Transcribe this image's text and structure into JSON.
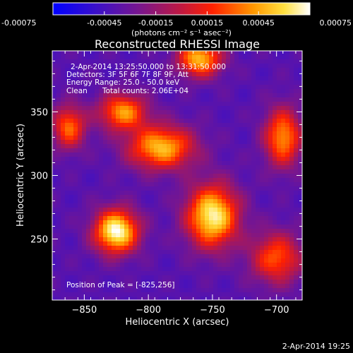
{
  "colorbar": {
    "ticks": [
      "-0.00075",
      "-0.00045",
      "-0.00015",
      "0.00015",
      "0.00045",
      "0.00075"
    ],
    "tick_values": [
      -0.00075,
      -0.00045,
      -0.00015,
      0.00015,
      0.00045,
      0.00075
    ],
    "range": [
      -0.00075,
      0.00075
    ],
    "units_label": "(photons cm⁻² s⁻¹ asec⁻²)"
  },
  "image_info": {
    "time_range": "2-Apr-2014 13:25:50.000 to 13:31:50.000",
    "detectors": "Detectors: 3F 5F 6F 7F 8F 9F, Att",
    "energy_range": "Energy Range: 25.0 - 50.0 keV",
    "algorithm": "Clean",
    "total_counts": "Total counts: 2.06E+04",
    "peak_position": "Position of Peak = [-825,256]"
  },
  "footer_timestamp": "2-Apr-2014 19:25",
  "chart_data": {
    "type": "heatmap",
    "title": "Reconstructed RHESSI Image",
    "xlabel": "Heliocentric X (arcsec)",
    "ylabel": "Heliocentric Y (arcsec)",
    "xlim": [
      -875,
      -680
    ],
    "ylim": [
      202,
      398
    ],
    "x_ticks": [
      -850,
      -800,
      -750,
      -700
    ],
    "x_tick_labels": [
      "−850",
      "−800",
      "−750",
      "−700"
    ],
    "y_ticks": [
      250,
      300,
      350
    ],
    "y_tick_labels": [
      "250",
      "300",
      "350"
    ],
    "colormap": "rhessi-blue-purple-red-yellow-white",
    "value_range": [
      -0.00075,
      0.00075
    ],
    "sources": [
      {
        "x": -825,
        "y": 256,
        "sx": 12,
        "sy": 12,
        "amp": 0.00076
      },
      {
        "x": -750,
        "y": 268,
        "sx": 14,
        "sy": 17,
        "amp": 0.0007
      },
      {
        "x": -790,
        "y": 322,
        "sx": 18,
        "sy": 12,
        "amp": 0.00052
      },
      {
        "x": -820,
        "y": 350,
        "sx": 13,
        "sy": 10,
        "amp": 0.00042
      },
      {
        "x": -760,
        "y": 392,
        "sx": 12,
        "sy": 10,
        "amp": 0.00052
      },
      {
        "x": -695,
        "y": 330,
        "sx": 10,
        "sy": 16,
        "amp": 0.00042
      },
      {
        "x": -862,
        "y": 338,
        "sx": 9,
        "sy": 12,
        "amp": 0.00032
      },
      {
        "x": -700,
        "y": 235,
        "sx": 14,
        "sy": 14,
        "amp": 0.00028
      }
    ],
    "background": -0.00038
  }
}
